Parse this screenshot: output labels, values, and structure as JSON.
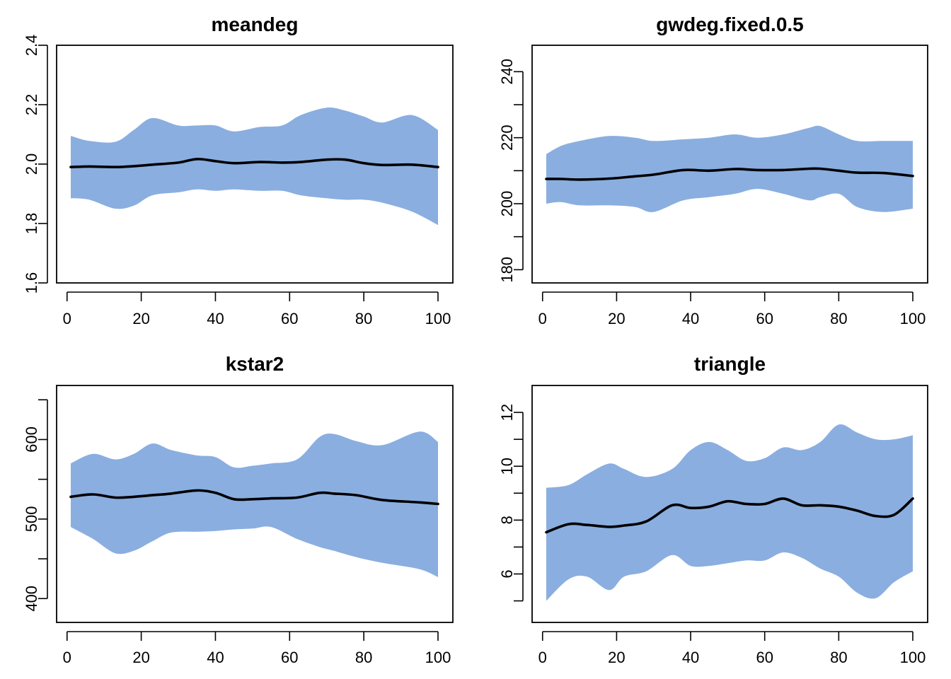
{
  "colors": {
    "band": "#8aaee0",
    "line": "#000000"
  },
  "chart_data": [
    {
      "type": "area",
      "title": "meandeg",
      "xlabel": "",
      "ylabel": "",
      "xlim": [
        1,
        100
      ],
      "ylim": [
        1.6,
        2.4
      ],
      "xticks": [
        0,
        20,
        40,
        60,
        80,
        100
      ],
      "yticks": [
        1.6,
        1.8,
        2.0,
        2.2,
        2.4
      ],
      "ytick_labels": [
        "1.6",
        "1.8",
        "2.0",
        "2.2",
        "2.4"
      ],
      "grid": false,
      "x": [
        1,
        6,
        13,
        18,
        23,
        30,
        35,
        40,
        45,
        52,
        58,
        63,
        70,
        75,
        80,
        85,
        93,
        100
      ],
      "upper": [
        2.095,
        2.078,
        2.075,
        2.115,
        2.155,
        2.13,
        2.13,
        2.13,
        2.11,
        2.125,
        2.13,
        2.165,
        2.19,
        2.18,
        2.16,
        2.14,
        2.165,
        2.115
      ],
      "lower": [
        1.885,
        1.88,
        1.85,
        1.86,
        1.895,
        1.905,
        1.915,
        1.91,
        1.915,
        1.91,
        1.91,
        1.895,
        1.885,
        1.88,
        1.88,
        1.87,
        1.84,
        1.795
      ],
      "mean": [
        1.99,
        1.992,
        1.99,
        1.993,
        1.998,
        2.005,
        2.017,
        2.01,
        2.003,
        2.007,
        2.005,
        2.007,
        2.015,
        2.015,
        2.003,
        1.997,
        1.998,
        1.99
      ]
    },
    {
      "type": "area",
      "title": "gwdeg.fixed.0.5",
      "xlabel": "",
      "ylabel": "",
      "xlim": [
        1,
        100
      ],
      "ylim": [
        176,
        248
      ],
      "xticks": [
        0,
        20,
        40,
        60,
        80,
        100
      ],
      "yticks": [
        180,
        200,
        220,
        240
      ],
      "ytick_labels": [
        "180",
        "200",
        "220",
        "240"
      ],
      "minor_yticks": [
        190,
        210,
        230
      ],
      "grid": false,
      "x": [
        1,
        5,
        10,
        18,
        25,
        30,
        38,
        45,
        52,
        58,
        65,
        72,
        75,
        80,
        85,
        92,
        100
      ],
      "upper": [
        215,
        217.5,
        219,
        220.5,
        220,
        219,
        219.5,
        220,
        221,
        220,
        221,
        223,
        223.5,
        221,
        219,
        219,
        219
      ],
      "lower": [
        200,
        200.5,
        199.5,
        199.5,
        199,
        197.5,
        201,
        202,
        203,
        204.5,
        203,
        201,
        202,
        203,
        199,
        197.5,
        198.5
      ],
      "mean": [
        207.5,
        207.5,
        207.3,
        207.6,
        208.3,
        208.8,
        210.2,
        210,
        210.5,
        210.2,
        210.2,
        210.6,
        210.6,
        210,
        209.4,
        209.3,
        208.4
      ]
    },
    {
      "type": "area",
      "title": "kstar2",
      "xlabel": "",
      "ylabel": "",
      "xlim": [
        1,
        100
      ],
      "ylim": [
        370,
        668
      ],
      "xticks": [
        0,
        20,
        40,
        60,
        80,
        100
      ],
      "yticks": [
        400,
        500,
        600
      ],
      "ytick_labels": [
        "400",
        "500",
        "600"
      ],
      "minor_yticks": [
        450,
        550,
        650
      ],
      "grid": false,
      "x": [
        1,
        7,
        13,
        18,
        23,
        28,
        35,
        40,
        45,
        50,
        55,
        62,
        68,
        72,
        78,
        85,
        95,
        100
      ],
      "upper": [
        570,
        582,
        575,
        582,
        595,
        587,
        580,
        578,
        565,
        567,
        570,
        575,
        603,
        607,
        598,
        593,
        610,
        597
      ],
      "lower": [
        490,
        475,
        457,
        460,
        472,
        483,
        484,
        485,
        487,
        488,
        490,
        475,
        465,
        460,
        452,
        445,
        437,
        427
      ],
      "mean": [
        528,
        531,
        527,
        528,
        530,
        532,
        536,
        533,
        525,
        525,
        526,
        527,
        533,
        532,
        530,
        524,
        521,
        519
      ]
    },
    {
      "type": "area",
      "title": "triangle",
      "xlabel": "",
      "ylabel": "",
      "xlim": [
        1,
        100
      ],
      "ylim": [
        4.2,
        13.0
      ],
      "xticks": [
        0,
        20,
        40,
        60,
        80,
        100
      ],
      "yticks": [
        6,
        8,
        10,
        12
      ],
      "ytick_labels": [
        "6",
        "8",
        "10",
        "12"
      ],
      "minor_yticks": [
        5,
        7,
        9,
        11
      ],
      "grid": false,
      "x": [
        1,
        7,
        12,
        18,
        22,
        28,
        35,
        40,
        45,
        50,
        55,
        60,
        65,
        70,
        75,
        80,
        85,
        90,
        95,
        100
      ],
      "upper": [
        9.2,
        9.3,
        9.7,
        10.1,
        9.9,
        9.6,
        9.9,
        10.6,
        10.9,
        10.6,
        10.2,
        10.3,
        10.7,
        10.6,
        10.9,
        11.55,
        11.25,
        11.0,
        11.0,
        11.15
      ],
      "lower": [
        5.0,
        5.8,
        5.9,
        5.4,
        5.9,
        6.1,
        6.7,
        6.3,
        6.3,
        6.4,
        6.5,
        6.5,
        6.8,
        6.6,
        6.2,
        5.9,
        5.3,
        5.1,
        5.7,
        6.1
      ],
      "mean": [
        7.55,
        7.85,
        7.82,
        7.75,
        7.8,
        7.95,
        8.55,
        8.45,
        8.5,
        8.7,
        8.6,
        8.6,
        8.8,
        8.55,
        8.55,
        8.5,
        8.35,
        8.15,
        8.2,
        8.8
      ]
    }
  ]
}
